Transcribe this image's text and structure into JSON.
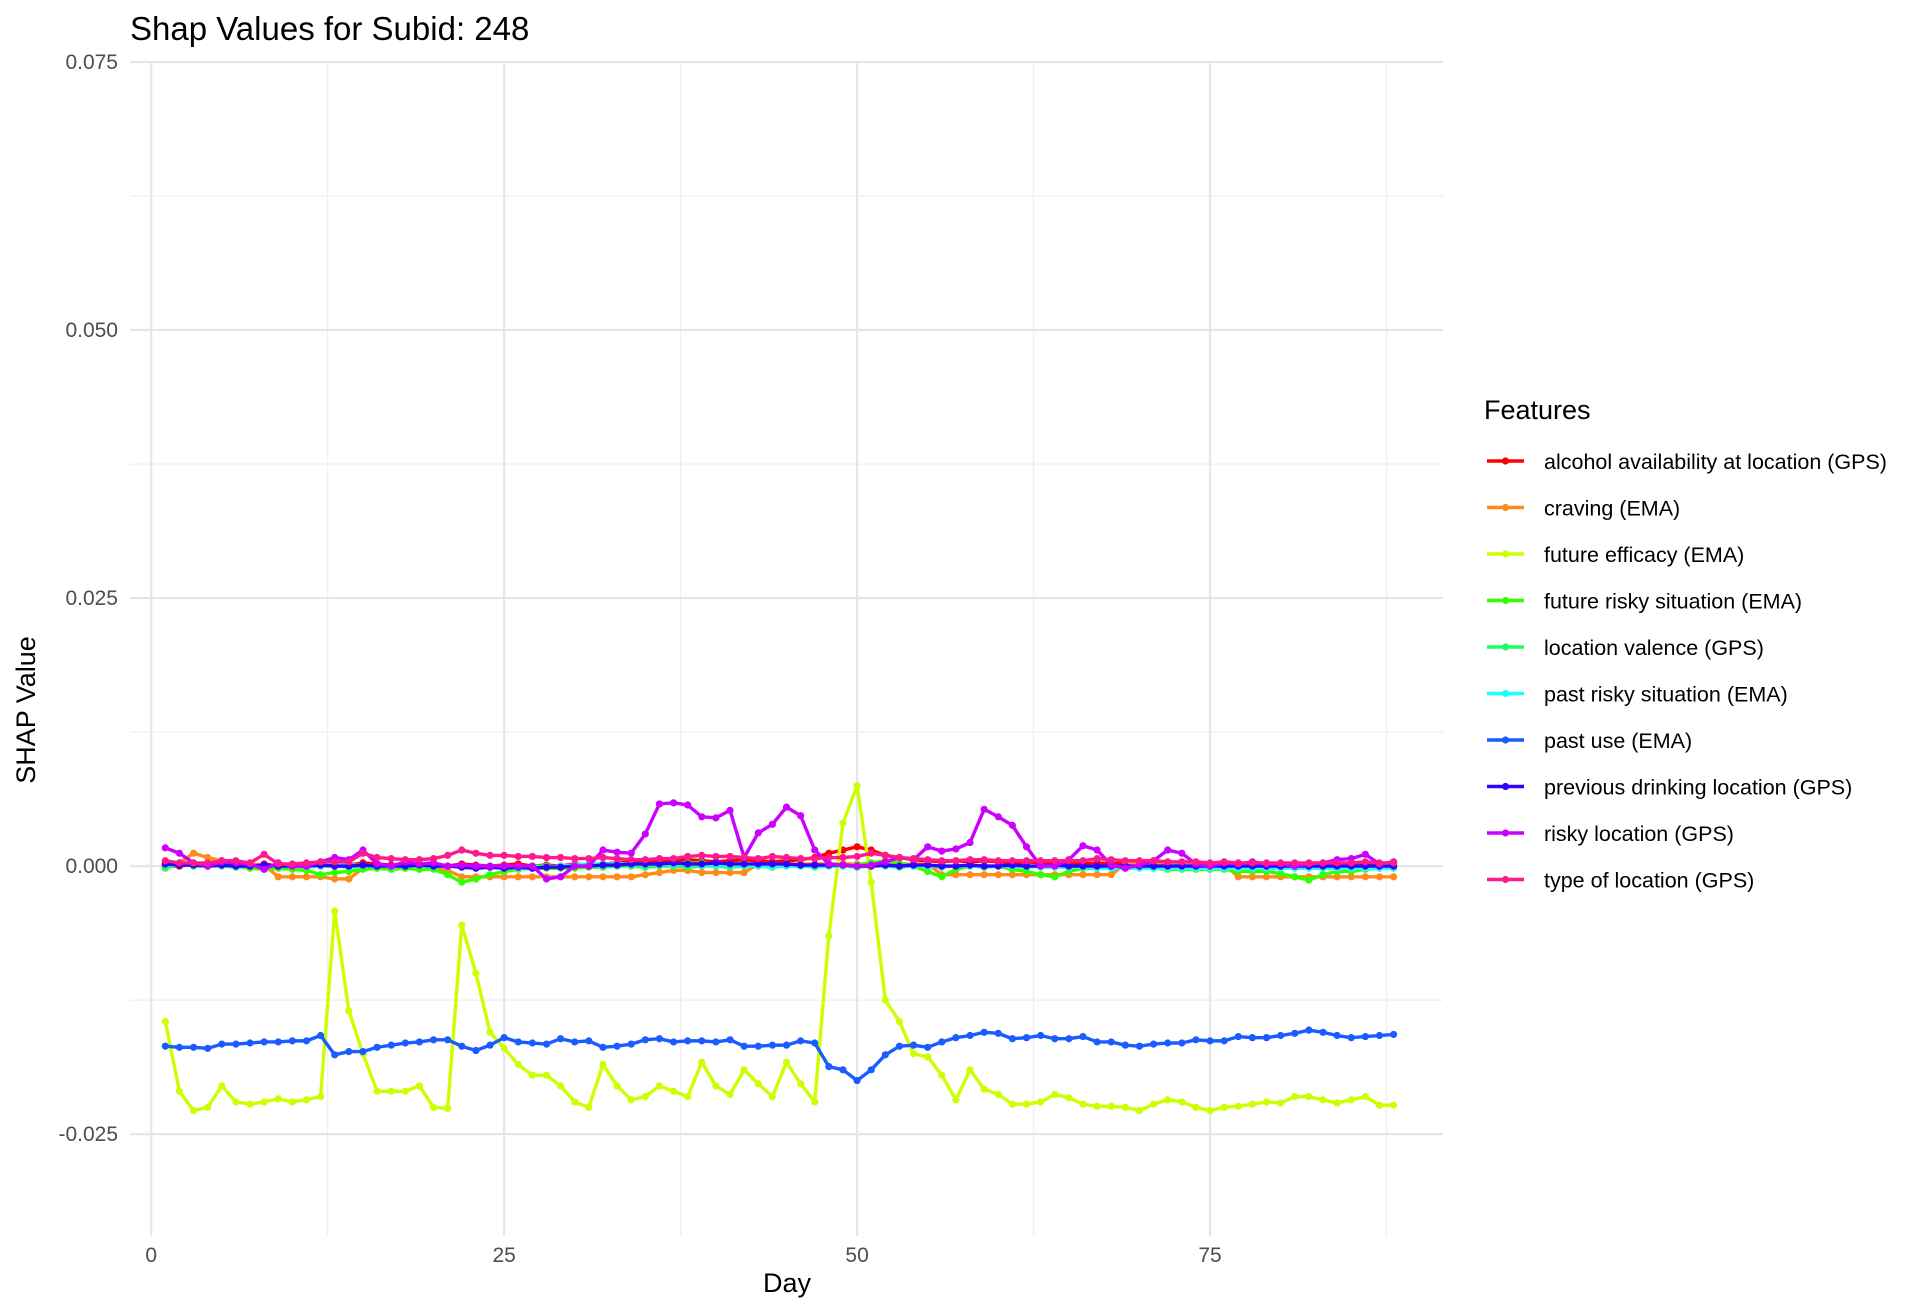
{
  "chart_data": {
    "type": "line",
    "title": "Shap Values for Subid: 248",
    "xlabel": "Day",
    "ylabel": "SHAP Value",
    "xlim": [
      -1.5,
      91.5
    ],
    "ylim": [
      -0.0345,
      0.075
    ],
    "x_ticks": [
      0,
      25,
      50,
      75
    ],
    "x_tick_labels": [
      "0",
      "25",
      "50",
      "75"
    ],
    "y_ticks": [
      -0.025,
      0.0,
      0.025,
      0.05,
      0.075
    ],
    "y_tick_labels": [
      "-0.025",
      "0.000",
      "0.025",
      "0.050",
      "0.075"
    ],
    "grid": true,
    "legend_title": "Features",
    "legend_position": "right",
    "x": [
      1,
      2,
      3,
      4,
      5,
      6,
      7,
      8,
      9,
      10,
      11,
      12,
      13,
      14,
      15,
      16,
      17,
      18,
      19,
      20,
      21,
      22,
      23,
      24,
      25,
      26,
      27,
      28,
      29,
      30,
      31,
      32,
      33,
      34,
      35,
      36,
      37,
      38,
      39,
      40,
      41,
      42,
      43,
      44,
      45,
      46,
      47,
      48,
      49,
      50,
      51,
      52,
      53,
      54,
      55,
      56,
      57,
      58,
      59,
      60,
      61,
      62,
      63,
      64,
      65,
      66,
      67,
      68,
      69,
      70,
      71,
      72,
      73,
      74,
      75,
      76,
      77,
      78,
      79,
      80,
      81,
      82,
      83,
      84,
      85,
      86,
      87,
      88
    ],
    "series": [
      {
        "name": "alcohol availability at location (GPS)",
        "color": "#FF0000",
        "values": [
          0.0,
          0.0,
          0.0002,
          0.0,
          0.0003,
          0.0001,
          0.0,
          0.0002,
          0.0,
          0.0001,
          0.0,
          0.0,
          0.0002,
          0.0001,
          0.0003,
          0.0002,
          0.0001,
          0.0002,
          0.0,
          0.0001,
          0.0,
          0.0002,
          0.0001,
          0.0,
          0.0001,
          0.0002,
          0.0,
          0.0001,
          0.0,
          0.0002,
          0.0001,
          0.0002,
          0.0003,
          0.0004,
          0.0005,
          0.0004,
          0.0005,
          0.0006,
          0.0005,
          0.0004,
          0.0005,
          0.0006,
          0.0005,
          0.0004,
          0.0005,
          0.0006,
          0.0008,
          0.0012,
          0.0015,
          0.0018,
          0.0015,
          0.001,
          0.0008,
          0.0006,
          0.0005,
          0.0004,
          0.0005,
          0.0004,
          0.0005,
          0.0004,
          0.0003,
          0.0004,
          0.0003,
          0.0004,
          0.0003,
          0.0002,
          0.0003,
          0.0002,
          0.0003,
          0.0002,
          0.0001,
          0.0002,
          0.0001,
          0.0002,
          0.0001,
          0.0002,
          0.0001,
          0.0002,
          0.0001,
          0.0,
          0.0001,
          0.0,
          0.0001,
          0.0002,
          0.0001,
          0.0002,
          0.0001,
          0.0002
        ]
      },
      {
        "name": "craving (EMA)",
        "color": "#FF8C1A",
        "values": [
          0.0002,
          0.0003,
          0.0012,
          0.0008,
          0.0005,
          0.0003,
          0.0002,
          0.0001,
          -0.001,
          -0.001,
          -0.001,
          -0.001,
          -0.0012,
          -0.0012,
          -0.0002,
          -0.0002,
          -0.0002,
          -0.0002,
          -0.0002,
          -0.0002,
          -0.0004,
          -0.001,
          -0.001,
          -0.001,
          -0.001,
          -0.001,
          -0.001,
          -0.001,
          -0.001,
          -0.001,
          -0.001,
          -0.001,
          -0.001,
          -0.001,
          -0.0008,
          -0.0006,
          -0.0004,
          -0.0004,
          -0.0006,
          -0.0006,
          -0.0006,
          -0.0006,
          0.0002,
          0.0002,
          0.0002,
          0.0002,
          0.0002,
          0.0002,
          0.0002,
          0.0002,
          0.0002,
          0.0002,
          0.0002,
          0.0002,
          0.0002,
          -0.0008,
          -0.0008,
          -0.0008,
          -0.0008,
          -0.0008,
          -0.0008,
          -0.0008,
          -0.0008,
          -0.0008,
          -0.0008,
          -0.0008,
          -0.0008,
          -0.0008,
          0.0002,
          0.0002,
          0.0002,
          0.0002,
          0.0002,
          0.0002,
          0.0002,
          0.0002,
          -0.001,
          -0.001,
          -0.001,
          -0.001,
          -0.001,
          -0.001,
          -0.001,
          -0.001,
          -0.001,
          -0.001,
          -0.001,
          -0.001
        ]
      },
      {
        "name": "future efficacy (EMA)",
        "color": "#CCFF00",
        "values": [
          -0.0145,
          -0.021,
          -0.0228,
          -0.0225,
          -0.0205,
          -0.022,
          -0.0222,
          -0.022,
          -0.0217,
          -0.022,
          -0.0218,
          -0.0215,
          -0.0042,
          -0.0135,
          -0.0175,
          -0.021,
          -0.021,
          -0.021,
          -0.0205,
          -0.0225,
          -0.0226,
          -0.0055,
          -0.01,
          -0.0155,
          -0.017,
          -0.0185,
          -0.0195,
          -0.0195,
          -0.0205,
          -0.022,
          -0.0225,
          -0.0185,
          -0.0205,
          -0.0218,
          -0.0215,
          -0.0205,
          -0.021,
          -0.0215,
          -0.0183,
          -0.0205,
          -0.0213,
          -0.019,
          -0.0203,
          -0.0215,
          -0.0183,
          -0.0203,
          -0.022,
          -0.0065,
          0.004,
          0.0075,
          -0.0015,
          -0.0125,
          -0.0145,
          -0.0175,
          -0.0178,
          -0.0195,
          -0.0218,
          -0.019,
          -0.0208,
          -0.0213,
          -0.0222,
          -0.0222,
          -0.022,
          -0.0213,
          -0.0216,
          -0.0222,
          -0.0224,
          -0.0224,
          -0.0225,
          -0.0228,
          -0.0222,
          -0.0218,
          -0.022,
          -0.0225,
          -0.0228,
          -0.0225,
          -0.0224,
          -0.0222,
          -0.022,
          -0.0221,
          -0.0215,
          -0.0215,
          -0.0218,
          -0.0221,
          -0.0218,
          -0.0215,
          -0.0223,
          -0.0223
        ]
      },
      {
        "name": "future risky situation (EMA)",
        "color": "#33FF00",
        "values": [
          0.0004,
          0.0002,
          0.0,
          0.0,
          0.0002,
          0.0,
          -0.0002,
          -0.0003,
          -0.0002,
          -0.0003,
          -0.0004,
          -0.0008,
          -0.0006,
          -0.0005,
          -0.0003,
          -0.0002,
          -0.0003,
          -0.0002,
          -0.0003,
          -0.0003,
          -0.0008,
          -0.0015,
          -0.0012,
          -0.0008,
          -0.0005,
          -0.0003,
          -0.0002,
          -0.0002,
          -0.0002,
          -0.0002,
          -0.0001,
          -0.0001,
          0.0,
          0.0,
          0.0001,
          0.0002,
          0.0002,
          0.0003,
          0.0003,
          0.0002,
          0.0002,
          0.0002,
          0.0001,
          0.0001,
          0.0001,
          0.0001,
          0.0,
          0.0,
          0.0,
          0.0001,
          0.0003,
          0.0005,
          0.0003,
          0.0,
          -0.0005,
          -0.001,
          -0.0003,
          0.0,
          0.0,
          0.0,
          -0.0003,
          -0.0005,
          -0.0008,
          -0.001,
          -0.0005,
          -0.0002,
          -0.0002,
          -0.0002,
          -0.0001,
          -0.0001,
          -0.0002,
          -0.0003,
          -0.0003,
          -0.0003,
          -0.0003,
          -0.0003,
          -0.0005,
          -0.0005,
          -0.0005,
          -0.0007,
          -0.001,
          -0.0013,
          -0.0008,
          -0.0005,
          -0.0005,
          -0.0003,
          -0.0002,
          -0.0002
        ]
      },
      {
        "name": "location valence (GPS)",
        "color": "#1AFF66",
        "values": [
          -0.0002,
          0.0002,
          0.0001,
          0.0,
          0.0,
          -0.0001,
          0.0,
          -0.0001,
          0.0,
          0.0,
          -0.0001,
          0.0,
          0.0,
          -0.0001,
          0.0,
          0.0,
          -0.0001,
          0.0,
          0.0,
          -0.0001,
          0.0,
          0.0,
          -0.0001,
          0.0,
          0.0,
          -0.0001,
          0.0,
          0.0,
          -0.0001,
          0.0,
          0.0,
          -0.0001,
          0.0,
          0.0,
          -0.0001,
          0.0,
          0.0,
          -0.0001,
          0.0,
          0.0,
          -0.0001,
          0.0,
          0.0,
          -0.0001,
          0.0,
          0.0,
          -0.0001,
          0.0,
          0.0,
          -0.0001,
          0.0,
          0.0,
          -0.0001,
          0.0,
          0.0,
          -0.0001,
          0.0,
          0.0,
          -0.0001,
          0.0,
          0.0,
          -0.0001,
          0.0,
          0.0,
          -0.0001,
          0.0,
          0.0,
          -0.0001,
          0.0,
          0.0,
          -0.0001,
          0.0,
          0.0,
          -0.0001,
          0.0,
          0.0,
          -0.0001,
          0.0,
          0.0,
          -0.0001,
          0.0,
          0.0,
          -0.0001,
          0.0,
          0.0,
          -0.0001,
          0.0,
          0.0
        ]
      },
      {
        "name": "past risky situation (EMA)",
        "color": "#1AFFFF",
        "values": [
          0.0004,
          0.0003,
          0.0002,
          0.0002,
          0.0001,
          0.0001,
          0.0,
          0.0,
          0.0001,
          0.0,
          0.0,
          0.0,
          0.0002,
          0.0001,
          0.0001,
          0.0,
          0.0,
          0.0,
          0.0001,
          0.0,
          0.0,
          -0.0001,
          0.0,
          0.0,
          -0.0001,
          -0.0002,
          -0.0002,
          -0.0001,
          0.0,
          0.0001,
          0.0002,
          0.0002,
          0.0002,
          0.0002,
          0.0002,
          0.0002,
          0.0002,
          0.0002,
          0.0001,
          0.0001,
          0.0001,
          0.0001,
          0.0,
          0.0,
          0.0,
          0.0,
          0.0,
          0.0,
          0.0,
          0.0,
          0.0,
          0.0,
          0.0,
          0.0,
          0.0,
          0.0,
          0.0,
          0.0,
          0.0,
          0.0,
          0.0,
          0.0,
          -0.0001,
          -0.0001,
          -0.0001,
          -0.0001,
          -0.0002,
          -0.0002,
          -0.0002,
          -0.0002,
          -0.0002,
          -0.0002,
          -0.0002,
          -0.0002,
          -0.0002,
          -0.0002,
          -0.0002,
          -0.0002,
          -0.0002,
          -0.0002,
          -0.0002,
          -0.0002,
          -0.0002,
          -0.0002,
          -0.0002,
          -0.0002,
          -0.0002,
          -0.0002
        ]
      },
      {
        "name": "past use (EMA)",
        "color": "#1A5CFF",
        "values": [
          -0.0168,
          -0.0169,
          -0.0169,
          -0.017,
          -0.0166,
          -0.0166,
          -0.0165,
          -0.0164,
          -0.0164,
          -0.0163,
          -0.0163,
          -0.0158,
          -0.0176,
          -0.0173,
          -0.0173,
          -0.0169,
          -0.0167,
          -0.0165,
          -0.0164,
          -0.0162,
          -0.0162,
          -0.0168,
          -0.0172,
          -0.0167,
          -0.016,
          -0.0164,
          -0.0165,
          -0.0166,
          -0.0161,
          -0.0164,
          -0.0163,
          -0.0169,
          -0.0168,
          -0.0166,
          -0.0162,
          -0.0161,
          -0.0164,
          -0.0163,
          -0.0163,
          -0.0164,
          -0.0162,
          -0.0168,
          -0.0168,
          -0.0167,
          -0.0167,
          -0.0163,
          -0.0165,
          -0.0187,
          -0.019,
          -0.02,
          -0.019,
          -0.0176,
          -0.0168,
          -0.0167,
          -0.0169,
          -0.0164,
          -0.016,
          -0.0158,
          -0.0155,
          -0.0156,
          -0.0161,
          -0.016,
          -0.0158,
          -0.0161,
          -0.0161,
          -0.0159,
          -0.0164,
          -0.0164,
          -0.0167,
          -0.0168,
          -0.0166,
          -0.0165,
          -0.0165,
          -0.0162,
          -0.0163,
          -0.0163,
          -0.0159,
          -0.016,
          -0.016,
          -0.0158,
          -0.0156,
          -0.0153,
          -0.0155,
          -0.0158,
          -0.016,
          -0.0159,
          -0.0158,
          -0.0157
        ]
      },
      {
        "name": "previous drinking location (GPS)",
        "color": "#3300FF",
        "values": [
          0.0002,
          0.0001,
          0.0001,
          0.0,
          0.0001,
          0.0,
          0.0,
          0.0001,
          0.0,
          0.0,
          0.0,
          0.0001,
          0.0,
          0.0,
          0.0001,
          0.0,
          0.0,
          0.0,
          0.0001,
          0.0,
          0.0,
          -0.0001,
          -0.0002,
          -0.0001,
          -0.0002,
          -0.0001,
          -0.0002,
          -0.0001,
          -0.0001,
          0.0,
          0.0,
          0.0001,
          0.0001,
          0.0002,
          0.0002,
          0.0002,
          0.0003,
          0.0002,
          0.0002,
          0.0003,
          0.0002,
          0.0002,
          0.0002,
          0.0002,
          0.0002,
          0.0001,
          0.0001,
          0.0001,
          0.0001,
          0.0,
          0.0,
          0.0001,
          0.0,
          0.0001,
          0.0001,
          0.0,
          0.0,
          0.0001,
          0.0,
          0.0,
          0.0001,
          0.0,
          0.0,
          0.0001,
          0.0,
          0.0,
          0.0,
          0.0,
          0.0,
          0.0,
          0.0,
          0.0,
          0.0,
          0.0,
          0.0,
          0.0,
          0.0,
          0.0,
          0.0,
          0.0,
          0.0,
          0.0,
          0.0,
          0.0,
          0.0,
          0.0,
          0.0,
          0.0
        ]
      },
      {
        "name": "risky location (GPS)",
        "color": "#CC00FF",
        "values": [
          0.0017,
          0.0012,
          0.0003,
          0.0,
          0.0004,
          0.0003,
          0.0002,
          -0.0003,
          0.0003,
          0.0,
          0.0,
          0.0004,
          0.0008,
          0.0006,
          0.0015,
          0.0002,
          0.0,
          0.0004,
          0.0002,
          0.0003,
          0.0,
          0.0001,
          0.0,
          0.0,
          0.0,
          0.0,
          0.0,
          -0.0012,
          -0.001,
          0.0,
          0.0,
          0.0015,
          0.0013,
          0.0012,
          0.003,
          0.0058,
          0.0059,
          0.0057,
          0.0046,
          0.0045,
          0.0052,
          0.0008,
          0.0031,
          0.0039,
          0.0055,
          0.0047,
          0.0015,
          0.0002,
          0.0001,
          0.0,
          0.0001,
          0.0004,
          0.0008,
          0.0006,
          0.0018,
          0.0014,
          0.0016,
          0.0022,
          0.0053,
          0.0046,
          0.0038,
          0.0018,
          0.0,
          0.0,
          0.0006,
          0.0019,
          0.0015,
          0.0001,
          -0.0002,
          0.0001,
          0.0005,
          0.0015,
          0.0012,
          0.0002,
          0.0,
          0.0003,
          0.0002,
          0.0004,
          0.0002,
          0.0002,
          0.0,
          0.0002,
          0.0003,
          0.0006,
          0.0007,
          0.0011,
          0.0002,
          0.0004
        ]
      },
      {
        "name": "type of location (GPS)",
        "color": "#FF1A8C",
        "values": [
          0.0005,
          0.0003,
          0.0003,
          0.0003,
          0.0005,
          0.0005,
          0.0003,
          0.0011,
          0.0002,
          0.0002,
          0.0003,
          0.0004,
          0.0004,
          0.0004,
          0.0012,
          0.0008,
          0.0007,
          0.0006,
          0.0006,
          0.0007,
          0.001,
          0.0015,
          0.0012,
          0.001,
          0.001,
          0.0009,
          0.0009,
          0.0008,
          0.0008,
          0.0007,
          0.0007,
          0.0008,
          0.0007,
          0.0006,
          0.0006,
          0.0007,
          0.0007,
          0.0009,
          0.001,
          0.0009,
          0.0009,
          0.0008,
          0.0007,
          0.0009,
          0.0008,
          0.0007,
          0.0007,
          0.0008,
          0.0008,
          0.0009,
          0.0012,
          0.001,
          0.0008,
          0.0007,
          0.0006,
          0.0005,
          0.0005,
          0.0006,
          0.0006,
          0.0005,
          0.0005,
          0.0005,
          0.0005,
          0.0005,
          0.0005,
          0.0005,
          0.0007,
          0.0006,
          0.0005,
          0.0005,
          0.0005,
          0.0004,
          0.0004,
          0.0004,
          0.0003,
          0.0004,
          0.0003,
          0.0003,
          0.0003,
          0.0003,
          0.0003,
          0.0003,
          0.0003,
          0.0003,
          0.0003,
          0.0004,
          0.0003,
          0.0003
        ]
      }
    ]
  }
}
